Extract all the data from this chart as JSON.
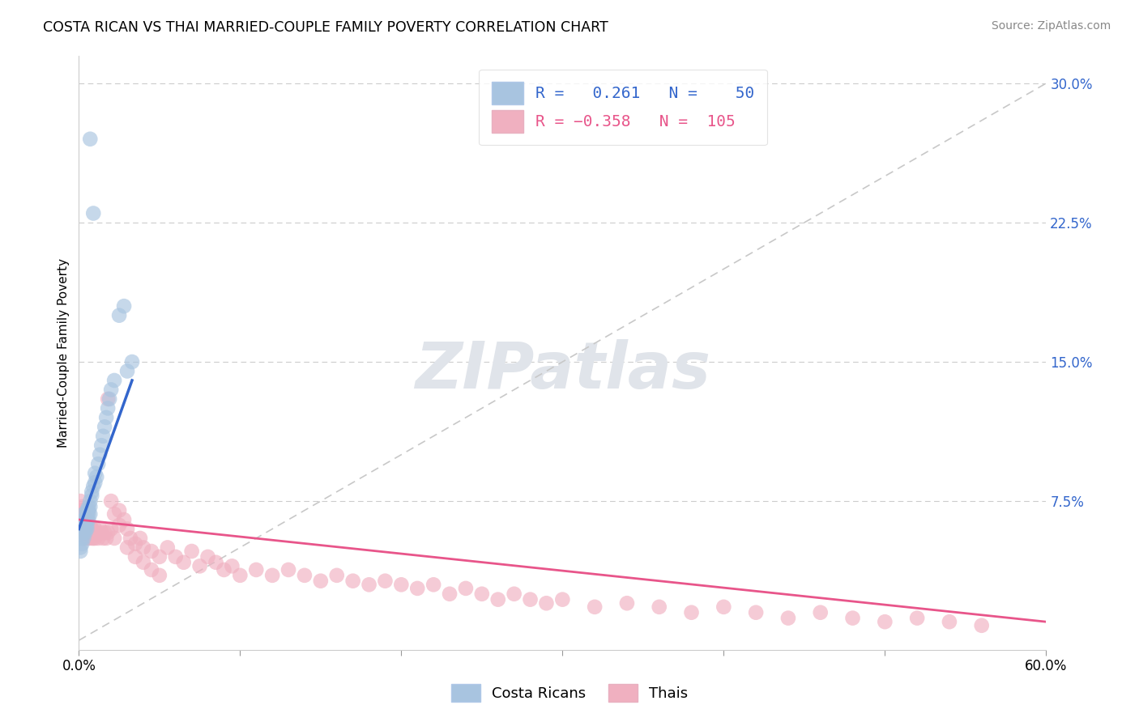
{
  "title": "COSTA RICAN VS THAI MARRIED-COUPLE FAMILY POVERTY CORRELATION CHART",
  "source": "Source: ZipAtlas.com",
  "ylabel": "Married-Couple Family Poverty",
  "xlim": [
    0.0,
    0.6
  ],
  "ylim": [
    -0.005,
    0.315
  ],
  "yticks_right": [
    0.0,
    0.075,
    0.15,
    0.225,
    0.3
  ],
  "ytick_right_labels": [
    "",
    "7.5%",
    "15.0%",
    "22.5%",
    "30.0%"
  ],
  "blue_R": 0.261,
  "blue_N": 50,
  "pink_R": -0.358,
  "pink_N": 105,
  "blue_color": "#a8c4e0",
  "pink_color": "#f0b0c0",
  "blue_line_color": "#3366cc",
  "pink_line_color": "#e8558a",
  "dashed_line_color": "#c8c8c8",
  "background_color": "#ffffff",
  "watermark": "ZIPatlas",
  "watermark_color": "#e0e4ea",
  "blue_scatter_x": [
    0.007,
    0.001,
    0.002,
    0.002,
    0.002,
    0.003,
    0.003,
    0.003,
    0.003,
    0.004,
    0.004,
    0.004,
    0.004,
    0.005,
    0.005,
    0.005,
    0.005,
    0.005,
    0.006,
    0.006,
    0.006,
    0.006,
    0.007,
    0.007,
    0.007,
    0.008,
    0.008,
    0.009,
    0.009,
    0.01,
    0.01,
    0.011,
    0.012,
    0.013,
    0.014,
    0.015,
    0.016,
    0.017,
    0.018,
    0.019,
    0.02,
    0.022,
    0.025,
    0.028,
    0.03,
    0.033,
    0.001,
    0.001,
    0.002,
    0.003
  ],
  "blue_scatter_y": [
    0.27,
    0.06,
    0.058,
    0.062,
    0.055,
    0.065,
    0.06,
    0.058,
    0.068,
    0.063,
    0.058,
    0.065,
    0.06,
    0.07,
    0.065,
    0.062,
    0.06,
    0.068,
    0.072,
    0.068,
    0.065,
    0.07,
    0.075,
    0.068,
    0.072,
    0.078,
    0.08,
    0.23,
    0.083,
    0.085,
    0.09,
    0.088,
    0.095,
    0.1,
    0.105,
    0.11,
    0.115,
    0.12,
    0.125,
    0.13,
    0.135,
    0.14,
    0.175,
    0.18,
    0.145,
    0.15,
    0.05,
    0.048,
    0.052,
    0.055
  ],
  "pink_scatter_x": [
    0.001,
    0.001,
    0.001,
    0.002,
    0.002,
    0.002,
    0.002,
    0.003,
    0.003,
    0.003,
    0.003,
    0.003,
    0.004,
    0.004,
    0.004,
    0.004,
    0.005,
    0.005,
    0.005,
    0.005,
    0.006,
    0.006,
    0.006,
    0.007,
    0.007,
    0.007,
    0.008,
    0.008,
    0.008,
    0.009,
    0.009,
    0.01,
    0.01,
    0.01,
    0.011,
    0.012,
    0.013,
    0.014,
    0.015,
    0.016,
    0.017,
    0.018,
    0.02,
    0.022,
    0.025,
    0.028,
    0.03,
    0.032,
    0.035,
    0.038,
    0.04,
    0.045,
    0.05,
    0.055,
    0.06,
    0.065,
    0.07,
    0.075,
    0.08,
    0.085,
    0.09,
    0.095,
    0.1,
    0.11,
    0.12,
    0.13,
    0.14,
    0.15,
    0.16,
    0.17,
    0.18,
    0.19,
    0.2,
    0.21,
    0.22,
    0.23,
    0.24,
    0.25,
    0.26,
    0.27,
    0.28,
    0.29,
    0.3,
    0.32,
    0.34,
    0.36,
    0.38,
    0.4,
    0.42,
    0.44,
    0.46,
    0.48,
    0.5,
    0.52,
    0.54,
    0.56,
    0.018,
    0.02,
    0.022,
    0.025,
    0.03,
    0.035,
    0.04,
    0.045,
    0.05
  ],
  "pink_scatter_y": [
    0.075,
    0.07,
    0.068,
    0.072,
    0.068,
    0.065,
    0.06,
    0.065,
    0.07,
    0.068,
    0.062,
    0.058,
    0.063,
    0.06,
    0.058,
    0.055,
    0.065,
    0.06,
    0.058,
    0.055,
    0.06,
    0.058,
    0.055,
    0.062,
    0.06,
    0.058,
    0.06,
    0.058,
    0.055,
    0.058,
    0.055,
    0.06,
    0.058,
    0.055,
    0.058,
    0.055,
    0.06,
    0.058,
    0.055,
    0.058,
    0.055,
    0.058,
    0.06,
    0.055,
    0.07,
    0.065,
    0.06,
    0.055,
    0.052,
    0.055,
    0.05,
    0.048,
    0.045,
    0.05,
    0.045,
    0.042,
    0.048,
    0.04,
    0.045,
    0.042,
    0.038,
    0.04,
    0.035,
    0.038,
    0.035,
    0.038,
    0.035,
    0.032,
    0.035,
    0.032,
    0.03,
    0.032,
    0.03,
    0.028,
    0.03,
    0.025,
    0.028,
    0.025,
    0.022,
    0.025,
    0.022,
    0.02,
    0.022,
    0.018,
    0.02,
    0.018,
    0.015,
    0.018,
    0.015,
    0.012,
    0.015,
    0.012,
    0.01,
    0.012,
    0.01,
    0.008,
    0.13,
    0.075,
    0.068,
    0.062,
    0.05,
    0.045,
    0.042,
    0.038,
    0.035
  ],
  "blue_trend_x": [
    0.0,
    0.033
  ],
  "blue_trend_y": [
    0.06,
    0.14
  ],
  "pink_trend_x": [
    0.0,
    0.6
  ],
  "pink_trend_y": [
    0.065,
    0.01
  ]
}
